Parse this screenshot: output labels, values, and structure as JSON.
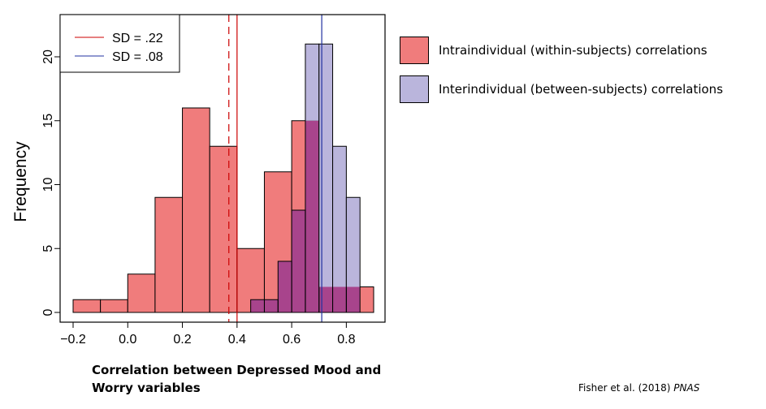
{
  "chart_data": {
    "type": "histogram",
    "ylabel": "Frequency",
    "xlabel_line1": "Correlation between Depressed Mood and",
    "xlabel_line2": "Worry variables",
    "xlim": [
      -0.2,
      0.9
    ],
    "ylim": [
      0,
      23
    ],
    "x_ticks": [
      "−0.2",
      "0.0",
      "0.2",
      "0.4",
      "0.6",
      "0.8"
    ],
    "x_tick_values": [
      -0.2,
      0.0,
      0.2,
      0.4,
      0.6,
      0.8
    ],
    "y_ticks": [
      0,
      5,
      10,
      15,
      20
    ],
    "series": [
      {
        "name": "Intraindividual (within-subjects) correlations",
        "color": "#f07c7c",
        "bins": [
          {
            "from": -0.2,
            "to": -0.1,
            "count": 1
          },
          {
            "from": -0.1,
            "to": 0.0,
            "count": 1
          },
          {
            "from": 0.0,
            "to": 0.1,
            "count": 3
          },
          {
            "from": 0.1,
            "to": 0.2,
            "count": 9
          },
          {
            "from": 0.2,
            "to": 0.3,
            "count": 16
          },
          {
            "from": 0.3,
            "to": 0.4,
            "count": 13
          },
          {
            "from": 0.4,
            "to": 0.5,
            "count": 5
          },
          {
            "from": 0.5,
            "to": 0.6,
            "count": 11
          },
          {
            "from": 0.6,
            "to": 0.7,
            "count": 15
          },
          {
            "from": 0.7,
            "to": 0.8,
            "count": 2
          },
          {
            "from": 0.8,
            "to": 0.9,
            "count": 2
          }
        ]
      },
      {
        "name": "Interindividual (between-subjects) correlations",
        "color": "#bab5dc",
        "bins": [
          {
            "from": 0.45,
            "to": 0.5,
            "count": 1
          },
          {
            "from": 0.5,
            "to": 0.55,
            "count": 1
          },
          {
            "from": 0.55,
            "to": 0.6,
            "count": 4
          },
          {
            "from": 0.6,
            "to": 0.65,
            "count": 8
          },
          {
            "from": 0.65,
            "to": 0.7,
            "count": 21
          },
          {
            "from": 0.7,
            "to": 0.75,
            "count": 21
          },
          {
            "from": 0.75,
            "to": 0.8,
            "count": 13
          },
          {
            "from": 0.8,
            "to": 0.85,
            "count": 9
          }
        ]
      }
    ],
    "overlap_color": "#a8448c",
    "vlines": [
      {
        "x": 0.37,
        "color": "#cc0000",
        "style": "dashed"
      },
      {
        "x": 0.4,
        "color": "#cc0000",
        "style": "solid"
      },
      {
        "x": 0.71,
        "color": "#2030a0",
        "style": "solid"
      }
    ],
    "inner_legend": {
      "placement": "top-left",
      "entries": [
        {
          "label": "SD = .22",
          "color": "#cc0000"
        },
        {
          "label": "SD = .08",
          "color": "#2030a0"
        }
      ]
    }
  },
  "legend": {
    "intra_label": "Intraindividual (within-subjects) correlations",
    "intra_color": "#f07c7c",
    "inter_label": "Interindividual (between-subjects) correlations",
    "inter_color": "#bab5dc"
  },
  "credit": {
    "authors": "Fisher et al. (2018) ",
    "journal": "PNAS"
  }
}
